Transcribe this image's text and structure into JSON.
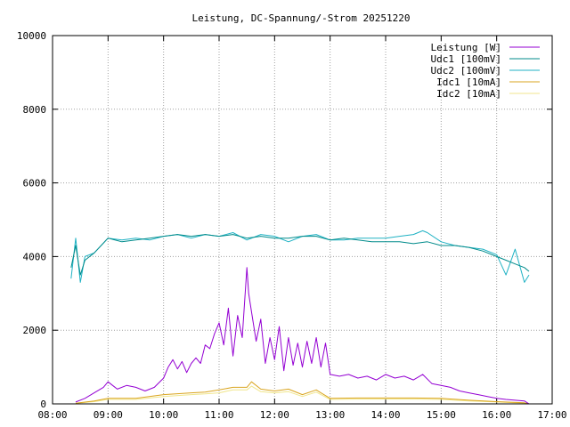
{
  "chart_data": {
    "type": "line",
    "title": "Leistung, DC-Spannung/-Strom 20251220",
    "xlabel": "",
    "ylabel": "",
    "x_range": [
      "08:00",
      "17:00"
    ],
    "ylim": [
      0,
      10000
    ],
    "y_ticks": [
      0,
      2000,
      4000,
      6000,
      8000,
      10000
    ],
    "x_ticks": [
      "08:00",
      "09:00",
      "10:00",
      "11:00",
      "12:00",
      "13:00",
      "14:00",
      "15:00",
      "16:00",
      "17:00"
    ],
    "grid": true,
    "legend_position": "top-right",
    "series": [
      {
        "name": "Leistung [W]",
        "color": "#9400d3",
        "x": [
          "08:25",
          "08:35",
          "08:45",
          "08:55",
          "09:00",
          "09:05",
          "09:10",
          "09:20",
          "09:30",
          "09:40",
          "09:50",
          "10:00",
          "10:05",
          "10:10",
          "10:15",
          "10:20",
          "10:25",
          "10:30",
          "10:35",
          "10:40",
          "10:45",
          "10:50",
          "10:55",
          "11:00",
          "11:05",
          "11:10",
          "11:15",
          "11:20",
          "11:25",
          "11:30",
          "11:32",
          "11:35",
          "11:40",
          "11:45",
          "11:50",
          "11:55",
          "12:00",
          "12:05",
          "12:10",
          "12:15",
          "12:20",
          "12:25",
          "12:30",
          "12:35",
          "12:40",
          "12:45",
          "12:50",
          "12:55",
          "13:00",
          "13:10",
          "13:20",
          "13:30",
          "13:40",
          "13:50",
          "14:00",
          "14:10",
          "14:20",
          "14:30",
          "14:40",
          "14:50",
          "15:00",
          "15:10",
          "15:20",
          "15:30",
          "15:40",
          "15:50",
          "16:00",
          "16:10",
          "16:20",
          "16:30",
          "16:35"
        ],
        "values": [
          50,
          150,
          300,
          450,
          600,
          500,
          400,
          500,
          450,
          350,
          450,
          700,
          1000,
          1200,
          950,
          1150,
          850,
          1100,
          1250,
          1100,
          1600,
          1500,
          1900,
          2200,
          1600,
          2600,
          1300,
          2400,
          1800,
          3700,
          3000,
          2500,
          1700,
          2300,
          1100,
          1800,
          1200,
          2100,
          900,
          1800,
          1050,
          1650,
          1000,
          1700,
          1100,
          1800,
          1000,
          1650,
          800,
          750,
          800,
          700,
          750,
          650,
          800,
          700,
          750,
          650,
          800,
          550,
          500,
          450,
          350,
          300,
          250,
          200,
          150,
          120,
          100,
          80,
          0
        ]
      },
      {
        "name": "Udc1 [100mV]",
        "color": "#008b8b",
        "x": [
          "08:20",
          "08:25",
          "08:30",
          "08:35",
          "08:45",
          "09:00",
          "09:15",
          "09:30",
          "09:45",
          "10:00",
          "10:15",
          "10:30",
          "10:45",
          "11:00",
          "11:15",
          "11:30",
          "11:45",
          "12:00",
          "12:15",
          "12:30",
          "12:45",
          "13:00",
          "13:15",
          "13:30",
          "13:45",
          "14:00",
          "14:15",
          "14:30",
          "14:45",
          "15:00",
          "15:15",
          "15:30",
          "15:45",
          "16:00",
          "16:10",
          "16:20",
          "16:30",
          "16:35"
        ],
        "values": [
          3700,
          4300,
          3500,
          3900,
          4100,
          4500,
          4400,
          4450,
          4500,
          4550,
          4600,
          4550,
          4600,
          4550,
          4600,
          4500,
          4550,
          4500,
          4500,
          4550,
          4550,
          4450,
          4500,
          4450,
          4400,
          4400,
          4400,
          4350,
          4400,
          4300,
          4300,
          4250,
          4150,
          4000,
          3900,
          3800,
          3700,
          3600
        ]
      },
      {
        "name": "Udc2 [100mV]",
        "color": "#20b2c4",
        "x": [
          "08:20",
          "08:25",
          "08:30",
          "08:35",
          "08:45",
          "09:00",
          "09:15",
          "09:30",
          "09:45",
          "10:00",
          "10:15",
          "10:30",
          "10:45",
          "11:00",
          "11:15",
          "11:30",
          "11:45",
          "12:00",
          "12:15",
          "12:30",
          "12:45",
          "13:00",
          "13:15",
          "13:30",
          "13:45",
          "14:00",
          "14:15",
          "14:30",
          "14:40",
          "14:45",
          "15:00",
          "15:15",
          "15:30",
          "15:45",
          "16:00",
          "16:10",
          "16:20",
          "16:30",
          "16:35"
        ],
        "values": [
          3400,
          4500,
          3300,
          4000,
          4100,
          4500,
          4450,
          4500,
          4450,
          4550,
          4600,
          4500,
          4600,
          4550,
          4650,
          4450,
          4600,
          4550,
          4400,
          4550,
          4600,
          4450,
          4450,
          4500,
          4500,
          4500,
          4550,
          4600,
          4700,
          4650,
          4400,
          4300,
          4250,
          4200,
          4050,
          3500,
          4200,
          3300,
          3500
        ]
      },
      {
        "name": "Idc1 [10mA]",
        "color": "#daa520",
        "x": [
          "08:25",
          "08:45",
          "09:00",
          "09:30",
          "10:00",
          "10:30",
          "10:45",
          "11:00",
          "11:15",
          "11:30",
          "11:35",
          "11:45",
          "12:00",
          "12:15",
          "12:30",
          "12:45",
          "12:50",
          "13:00",
          "13:30",
          "14:00",
          "14:30",
          "15:00",
          "15:30",
          "16:00",
          "16:30",
          "16:35"
        ],
        "values": [
          20,
          80,
          150,
          150,
          250,
          300,
          320,
          380,
          450,
          450,
          600,
          400,
          350,
          400,
          250,
          380,
          300,
          150,
          160,
          160,
          160,
          150,
          100,
          60,
          30,
          0
        ]
      },
      {
        "name": "Idc2 [10mA]",
        "color": "#f0e68c",
        "x": [
          "08:25",
          "08:45",
          "09:00",
          "09:30",
          "10:00",
          "10:30",
          "10:45",
          "11:00",
          "11:15",
          "11:30",
          "11:35",
          "11:45",
          "12:00",
          "12:15",
          "12:30",
          "12:45",
          "12:50",
          "13:00",
          "13:30",
          "14:00",
          "14:30",
          "15:00",
          "15:30",
          "16:00",
          "16:30",
          "16:35"
        ],
        "values": [
          15,
          60,
          120,
          120,
          200,
          250,
          270,
          300,
          380,
          380,
          480,
          330,
          300,
          330,
          200,
          320,
          250,
          120,
          130,
          130,
          130,
          120,
          80,
          50,
          20,
          0
        ]
      }
    ]
  }
}
